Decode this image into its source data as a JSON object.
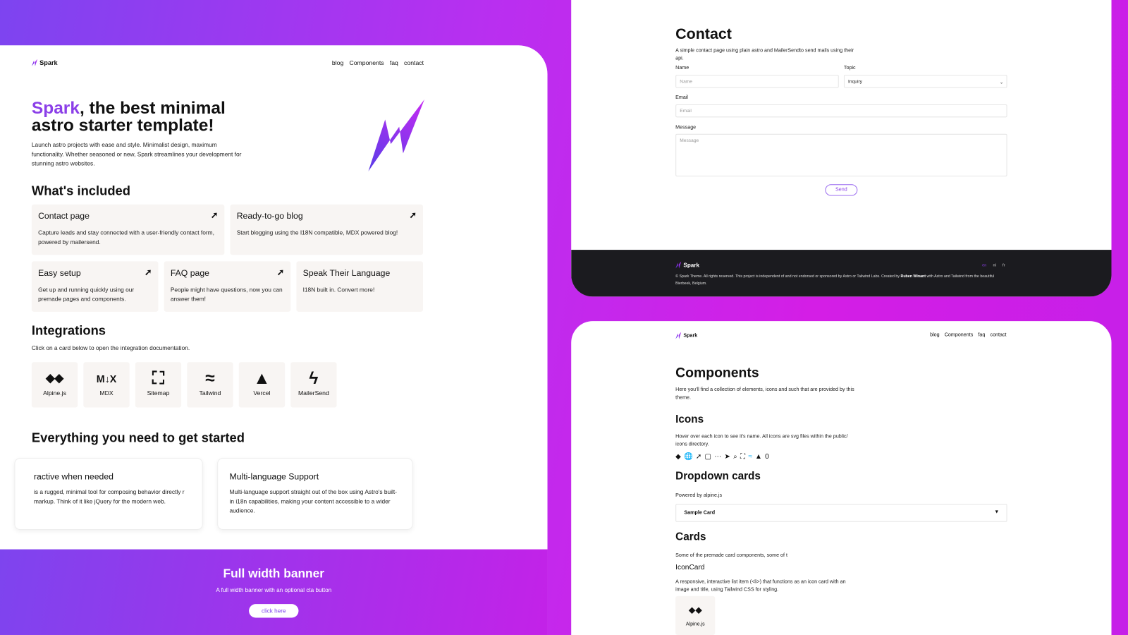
{
  "colors": {
    "accent": "#8b3fe8",
    "footer_bg": "#1b1b1f",
    "card_bg": "#f8f5f3"
  },
  "home": {
    "logo": "Spark",
    "nav": [
      "blog",
      "Components",
      "faq",
      "contact"
    ],
    "hero": {
      "title_accent": "Spark",
      "title_rest": ", the best minimal astro starter template!",
      "text": "Launch astro projects with ease and style. Minimalist design, maximum functionality. Whether seasoned or new, Spark streamlines your development for stunning astro websites."
    },
    "included": {
      "heading": "What's included",
      "cards": [
        {
          "title": "Contact page",
          "text": "Capture leads and stay connected with a user-friendly contact form, powered by mailersend.",
          "icon": "arrow-up-right-icon"
        },
        {
          "title": "Ready-to-go blog",
          "text": "Start blogging using the I18N compatible, MDX powered blog!",
          "icon": "arrow-up-right-icon"
        },
        {
          "title": "Easy setup",
          "text": "Get up and running quickly using our premade pages and components.",
          "icon": "arrow-up-right-icon"
        },
        {
          "title": "FAQ page",
          "text": "People might have questions, now you can answer them!",
          "icon": "arrow-up-right-icon"
        },
        {
          "title": "Speak Their Language",
          "text": "I18N built in. Convert more!"
        }
      ]
    },
    "integrations": {
      "heading": "Integrations",
      "text": "Click on a card below to open the integration documentation.",
      "items": [
        {
          "label": "Alpine.js",
          "glyph": "◆◆"
        },
        {
          "label": "MDX",
          "glyph": "M↓X"
        },
        {
          "label": "Sitemap",
          "glyph": "⛶"
        },
        {
          "label": "Tailwind",
          "glyph": "≈"
        },
        {
          "label": "Vercel",
          "glyph": "▲"
        },
        {
          "label": "MailerSend",
          "glyph": "ϟ"
        }
      ]
    },
    "started": {
      "heading": "Everything you need to get started",
      "cards": [
        {
          "title": "ractive when needed",
          "text": "is a rugged, minimal tool for composing behavior directly r markup. Think of it like jQuery for the modern web."
        },
        {
          "title": "Multi-language Support",
          "text": "Multi-language support straight out of the box using Astro's built-in i18n capabilities, making your content accessible to a wider audience."
        }
      ]
    },
    "banner": {
      "title": "Full width banner",
      "text": "A full width banner with an optional cta button",
      "button": "click here"
    }
  },
  "contact": {
    "title": "Contact",
    "text": "A simple contact page using plain astro and MailerSendto send mails using their api.",
    "name_label": "Name",
    "name_placeholder": "Name",
    "topic_label": "Topic",
    "topic_value": "Inquiry",
    "email_label": "Email",
    "email_placeholder": "Email",
    "message_label": "Message",
    "message_placeholder": "Message",
    "send": "Send",
    "footer": {
      "logo": "Spark",
      "copyright": "© Spark Theme. All rights reserved. This project is independent of and not endorsed or sponsored by Astro or Tailwind Labs. Created by",
      "author": "Ruben Winant",
      "copyright_end": "with Astro and Tailwind from the beautiful Bierbeek, Belgium.",
      "langs": [
        "en",
        "nl",
        "fr"
      ]
    }
  },
  "components": {
    "logo": "Spark",
    "nav": [
      "blog",
      "Components",
      "faq",
      "contact"
    ],
    "title": "Components",
    "text": "Here you'll find a collection of elements, icons and such that are provided by this theme.",
    "icons_heading": "Icons",
    "icons_text": "Hover over each icon to see it's name. All icons are svg files within the public/ icons directory.",
    "icons": [
      {
        "name": "alpine-icon",
        "glyph": "◆"
      },
      {
        "name": "globe-icon",
        "glyph": "🌐"
      },
      {
        "name": "arrow-icon",
        "glyph": "➚"
      },
      {
        "name": "document-icon",
        "glyph": "▢"
      },
      {
        "name": "dots-icon",
        "glyph": "⋯"
      },
      {
        "name": "cursor-icon",
        "glyph": "➤"
      },
      {
        "name": "search-icon",
        "glyph": "⌕"
      },
      {
        "name": "sitemap-icon",
        "glyph": "⛶"
      },
      {
        "name": "tailwind-icon",
        "glyph": "≈"
      },
      {
        "name": "vercel-icon",
        "glyph": "▲"
      },
      {
        "name": "zero-icon",
        "glyph": "0"
      }
    ],
    "dropdown_heading": "Dropdown cards",
    "dropdown_text": "Powered by alpine.js",
    "dropdown_value": "Sample Card",
    "cards_heading": "Cards",
    "cards_text": "Some of the premade card components, some of t",
    "iconcard_heading": "IconCard",
    "iconcard_text": "A responsive, interactive list item (<li>) that functions as an icon card with an image and title, using Tailwind CSS for styling.",
    "iconcard_label": "Alpine.js"
  }
}
